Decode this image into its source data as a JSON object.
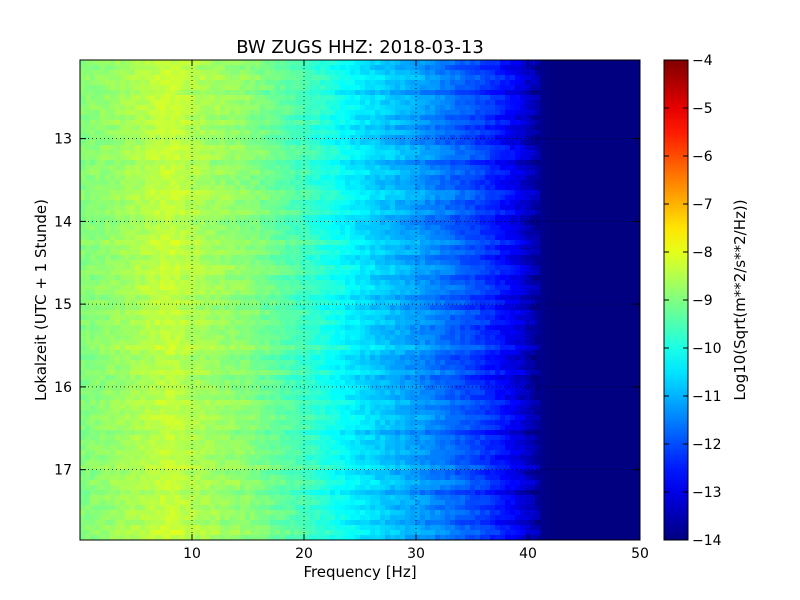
{
  "chart_data": {
    "type": "heatmap",
    "title": "BW ZUGS HHZ: 2018-03-13",
    "xlabel": "Frequency [Hz]",
    "ylabel": "Lokalzeit (UTC + 1 Stunde)",
    "xlim": [
      0,
      50
    ],
    "ylim": [
      17.85,
      12.05
    ],
    "x_ticks": [
      10,
      20,
      30,
      40,
      50
    ],
    "x_tick_labels": [
      "10",
      "20",
      "30",
      "40",
      "50"
    ],
    "y_ticks": [
      13,
      14,
      15,
      16,
      17
    ],
    "y_tick_labels": [
      "13",
      "14",
      "15",
      "16",
      "17"
    ],
    "grid": true,
    "colormap": "jet",
    "colorbar": {
      "label": "Log10(Sqrt(m**2/s**2/Hz))",
      "range": [
        -14,
        -4
      ],
      "ticks": [
        -4,
        -5,
        -6,
        -7,
        -8,
        -9,
        -10,
        -11,
        -12,
        -13,
        -14
      ],
      "tick_labels": [
        "−4",
        "−5",
        "−6",
        "−7",
        "−8",
        "−9",
        "−10",
        "−11",
        "−12",
        "−13",
        "−14"
      ]
    },
    "spectral_profile": {
      "frequency_hz": [
        0,
        5,
        8,
        10,
        12,
        15,
        20,
        25,
        30,
        33,
        36,
        38,
        40,
        41,
        42,
        50
      ],
      "log10_amplitude": [
        -9.0,
        -8.6,
        -8.3,
        -8.5,
        -8.7,
        -8.9,
        -9.6,
        -10.5,
        -11.2,
        -11.7,
        -12.2,
        -12.7,
        -13.3,
        -13.8,
        -14.0,
        -14.0
      ]
    }
  }
}
